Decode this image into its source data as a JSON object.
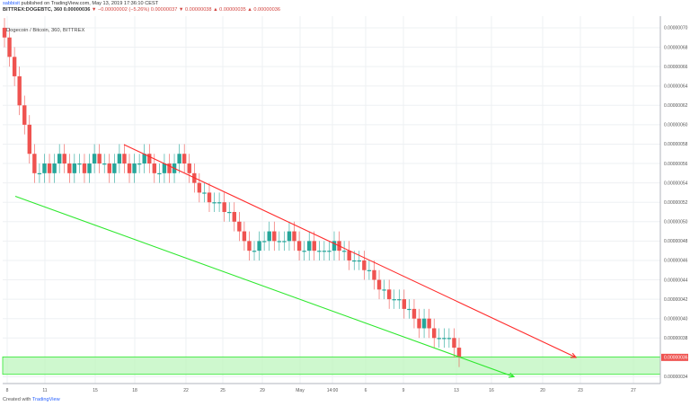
{
  "header": {
    "author": "sabbisit",
    "published_text": "published on TradingView.com, May 13, 2019 17:36:10 CEST",
    "symbol_line": "BITTREX:DOGEBTC, 360",
    "ohlc_open": "0.00000036",
    "change_text": "▼ −0.00000002 (−5.26%)",
    "ohlc_rest": "0.00000037  ▼ 0.00000038  ▲ 0.00000035  ▲ 0.00000036"
  },
  "chart_title": "Dogecoin / Bitcoin, 360, BITTREX",
  "footer": {
    "prefix": "Created with",
    "brand": "TradingView"
  },
  "colors": {
    "up": "#26a69a",
    "down": "#ef5350",
    "resistance": "#ff2a2a",
    "support": "#2ee82e",
    "zone": "#b9f5b9",
    "last_price": "#ef5350"
  },
  "chart_data": {
    "type": "candlestick",
    "x_tick_labels": [
      "8",
      "11",
      "15",
      "18",
      "22",
      "25",
      "29",
      "May",
      "14:00",
      "6",
      "9",
      "13",
      "16",
      "20",
      "23",
      "27"
    ],
    "y_tick_labels": [
      "0.00000034",
      "0.00000036",
      "0.00000038",
      "0.00000040",
      "0.00000042",
      "0.00000044",
      "0.00000046",
      "0.00000048",
      "0.00000050",
      "0.00000052",
      "0.00000054",
      "0.00000056",
      "0.00000058",
      "0.00000060",
      "0.00000062",
      "0.00000064",
      "0.00000066",
      "0.00000068",
      "0.00000070"
    ],
    "ylim": [
      3.33e-07,
      7.12e-07
    ],
    "last_price_label": "0.00000036",
    "series_closes": [
      69,
      67,
      65,
      62,
      60,
      57,
      55,
      55,
      56,
      55,
      56,
      57,
      56,
      55,
      56,
      56,
      55,
      56,
      57,
      56,
      56,
      55,
      56,
      57,
      56,
      55,
      56,
      56,
      57,
      56,
      55,
      55,
      56,
      55,
      56,
      57,
      56,
      55,
      54,
      53,
      53,
      52,
      52,
      52,
      51,
      51,
      50,
      49,
      48,
      47,
      47,
      48,
      48,
      49,
      48,
      48,
      48,
      49,
      48,
      47,
      47,
      48,
      47,
      47,
      47,
      47,
      48,
      47,
      47,
      46,
      46,
      46,
      45,
      45,
      44,
      43,
      43,
      42,
      42,
      42,
      41,
      41,
      40,
      39,
      40,
      39,
      38,
      38,
      38,
      38,
      37,
      36
    ],
    "resistance_line": {
      "start": [
        "18",
        5.795e-07
      ],
      "end": [
        "23",
        3.6e-07
      ]
    },
    "support_line": {
      "start": [
        "8",
        5.262e-07
      ],
      "end": [
        "16",
        3.4e-07
      ]
    },
    "support_zone": [
      3.425e-07,
      3.605e-07
    ]
  }
}
